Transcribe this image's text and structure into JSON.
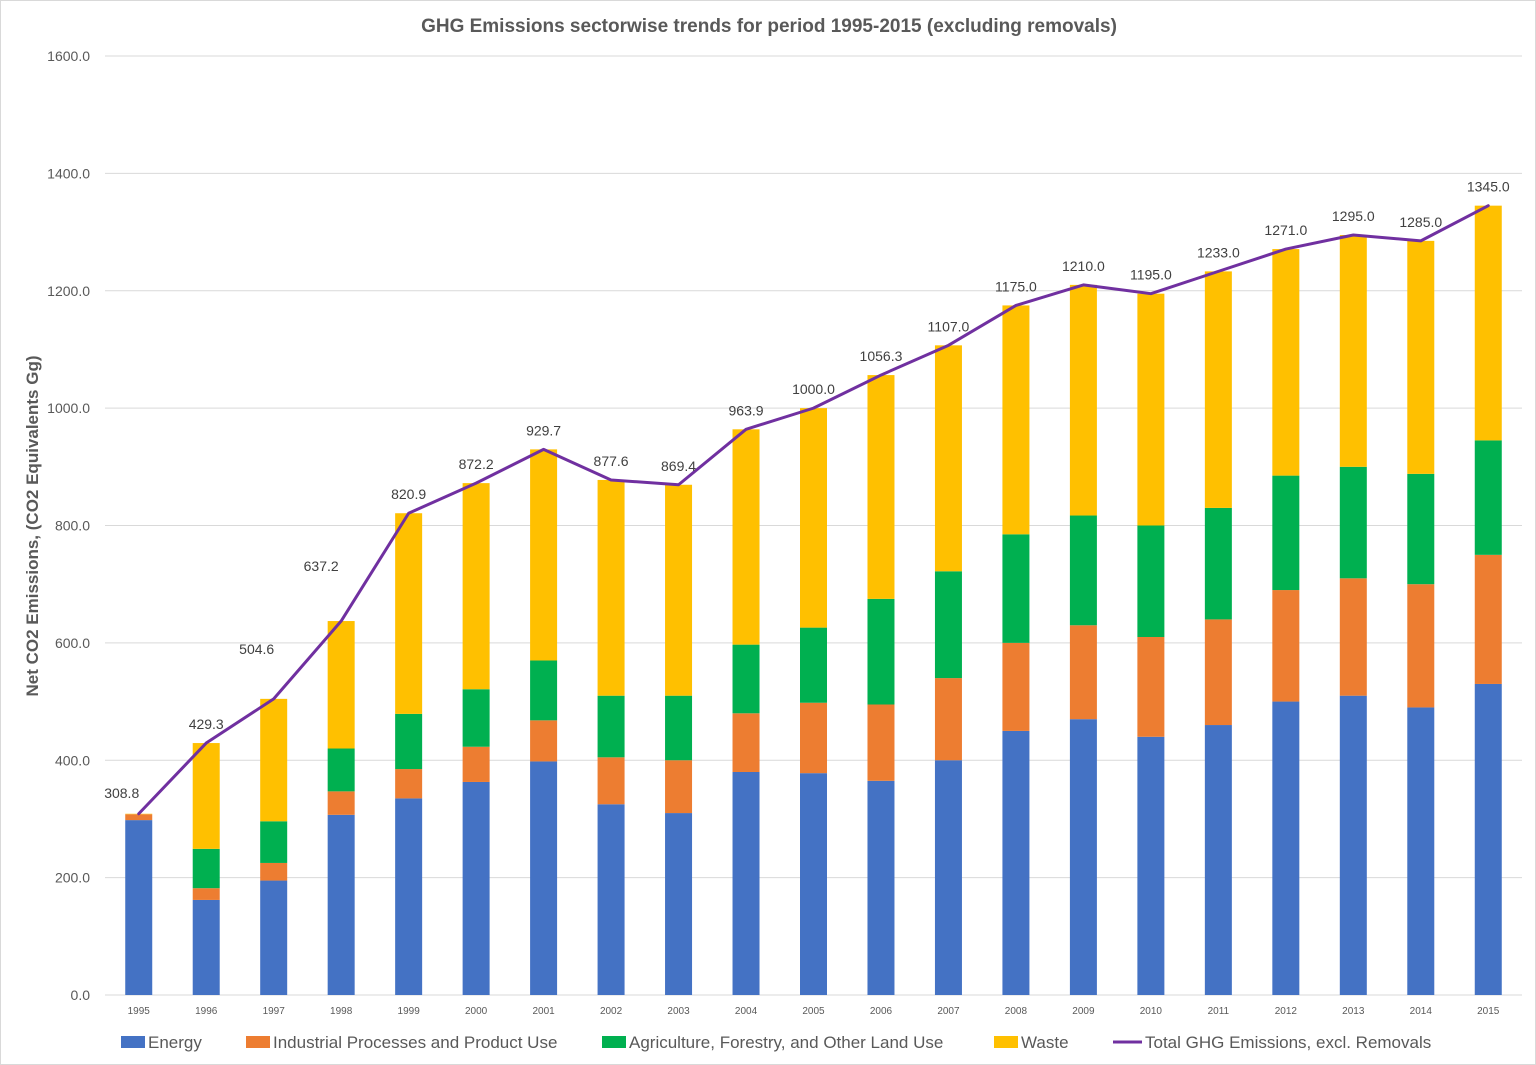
{
  "chart_data": {
    "type": "bar",
    "stacked": true,
    "title": "GHG Emissions sectorwise trends for period 1995-2015 (excluding removals)",
    "xlabel": "",
    "ylabel": "Net CO2 Emissions, (CO2 Equivalents Gg)",
    "ylim": [
      0,
      1600
    ],
    "yticks": [
      "0.0",
      "200.0",
      "400.0",
      "600.0",
      "800.0",
      "1000.0",
      "1200.0",
      "1400.0",
      "1600.0"
    ],
    "grid": true,
    "legend_position": "bottom",
    "categories": [
      "1995",
      "1996",
      "1997",
      "1998",
      "1999",
      "2000",
      "2001",
      "2002",
      "2003",
      "2004",
      "2005",
      "2006",
      "2007",
      "2008",
      "2009",
      "2010",
      "2011",
      "2012",
      "2013",
      "2014",
      "2015"
    ],
    "series": [
      {
        "name": "Energy",
        "color": "#4472C4",
        "values": [
          298,
          162,
          195,
          307,
          335,
          363,
          398,
          325,
          310,
          380,
          378,
          365,
          400,
          450,
          470,
          440,
          460,
          500,
          510,
          490,
          530
        ]
      },
      {
        "name": "Industrial Processes and Product Use",
        "color": "#ED7D31",
        "values": [
          10,
          20,
          30,
          40,
          50,
          60,
          70,
          80,
          90,
          100,
          120,
          130,
          140,
          150,
          160,
          170,
          180,
          190,
          200,
          210,
          220
        ]
      },
      {
        "name": "Agriculture, Forestry, and Other Land Use",
        "color": "#00B050",
        "values": [
          0,
          67,
          71,
          73,
          94,
          98,
          102,
          105,
          110,
          117,
          128,
          180,
          182,
          185,
          187,
          190,
          190,
          195,
          190,
          188,
          195
        ]
      },
      {
        "name": "Waste",
        "color": "#FFC000",
        "values": [
          0.8,
          180.3,
          208.6,
          217.2,
          341.9,
          351.2,
          359.7,
          367.6,
          359.4,
          366.9,
          374,
          381.3,
          385,
          390,
          393,
          395,
          403,
          386,
          395,
          397,
          400
        ]
      }
    ],
    "line_series": {
      "name": "Total GHG Emissions, excl. Removals",
      "color": "#7030A0",
      "values": [
        308.8,
        429.3,
        504.6,
        637.2,
        820.9,
        872.2,
        929.7,
        877.6,
        869.4,
        963.9,
        1000.0,
        1056.3,
        1107.0,
        1175.0,
        1210.0,
        1195.0,
        1233.0,
        1271.0,
        1295.0,
        1285.0,
        1345.0
      ],
      "labels": [
        "308.8",
        "429.3",
        "504.6",
        "637.2",
        "820.9",
        "872.2",
        "929.7",
        "877.6",
        "869.4",
        "963.9",
        "1000.0",
        "1056.3",
        "1107.0",
        "1175.0",
        "1210.0",
        "1195.0",
        "1233.0",
        "1271.0",
        "1295.0",
        "1285.0",
        "1345.0"
      ]
    }
  }
}
